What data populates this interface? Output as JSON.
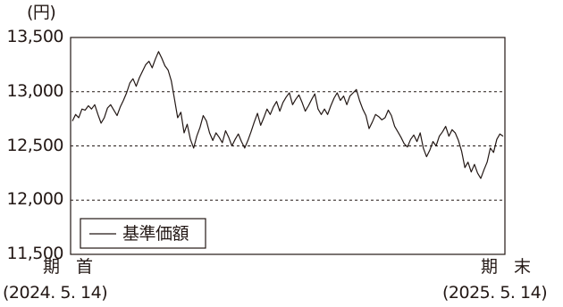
{
  "chart_data": {
    "type": "line",
    "y_unit_label": "(円)",
    "ylim": [
      11500,
      13500
    ],
    "yticks": [
      11500,
      12000,
      12500,
      13000,
      13500
    ],
    "ytick_labels": [
      "11,500",
      "12,000",
      "12,500",
      "13,000",
      "13,500"
    ],
    "grid": "dashed horizontal lines at 12,000 / 12,500 / 13,000",
    "x_start_label": "期 首",
    "x_start_date": "(2024. 5. 14)",
    "x_end_label": "期 末",
    "x_end_date": "(2025. 5. 14)",
    "legend": {
      "position": "bottom-left",
      "entries": [
        "基準価額"
      ]
    },
    "series": [
      {
        "name": "基準価額",
        "color": "#231815",
        "values": [
          12730,
          12790,
          12760,
          12840,
          12830,
          12870,
          12840,
          12880,
          12790,
          12710,
          12760,
          12850,
          12880,
          12830,
          12780,
          12860,
          12920,
          12990,
          13080,
          13120,
          13050,
          13130,
          13190,
          13250,
          13280,
          13220,
          13300,
          13370,
          13310,
          13240,
          13200,
          13100,
          12930,
          12760,
          12810,
          12620,
          12700,
          12560,
          12480,
          12590,
          12670,
          12780,
          12730,
          12620,
          12550,
          12620,
          12580,
          12530,
          12640,
          12580,
          12500,
          12560,
          12610,
          12540,
          12480,
          12550,
          12630,
          12720,
          12800,
          12690,
          12760,
          12840,
          12790,
          12860,
          12910,
          12820,
          12900,
          12950,
          12990,
          12880,
          12930,
          12970,
          12900,
          12820,
          12870,
          12930,
          12980,
          12840,
          12790,
          12840,
          12790,
          12870,
          12940,
          12990,
          12920,
          12960,
          12880,
          12960,
          12990,
          13020,
          12920,
          12840,
          12780,
          12660,
          12720,
          12790,
          12770,
          12740,
          12760,
          12830,
          12780,
          12680,
          12630,
          12580,
          12520,
          12490,
          12560,
          12600,
          12540,
          12620,
          12480,
          12400,
          12460,
          12540,
          12500,
          12590,
          12630,
          12680,
          12590,
          12650,
          12620,
          12550,
          12450,
          12300,
          12350,
          12260,
          12330,
          12250,
          12200,
          12280,
          12350,
          12480,
          12440,
          12560,
          12610,
          12590
        ]
      }
    ]
  }
}
